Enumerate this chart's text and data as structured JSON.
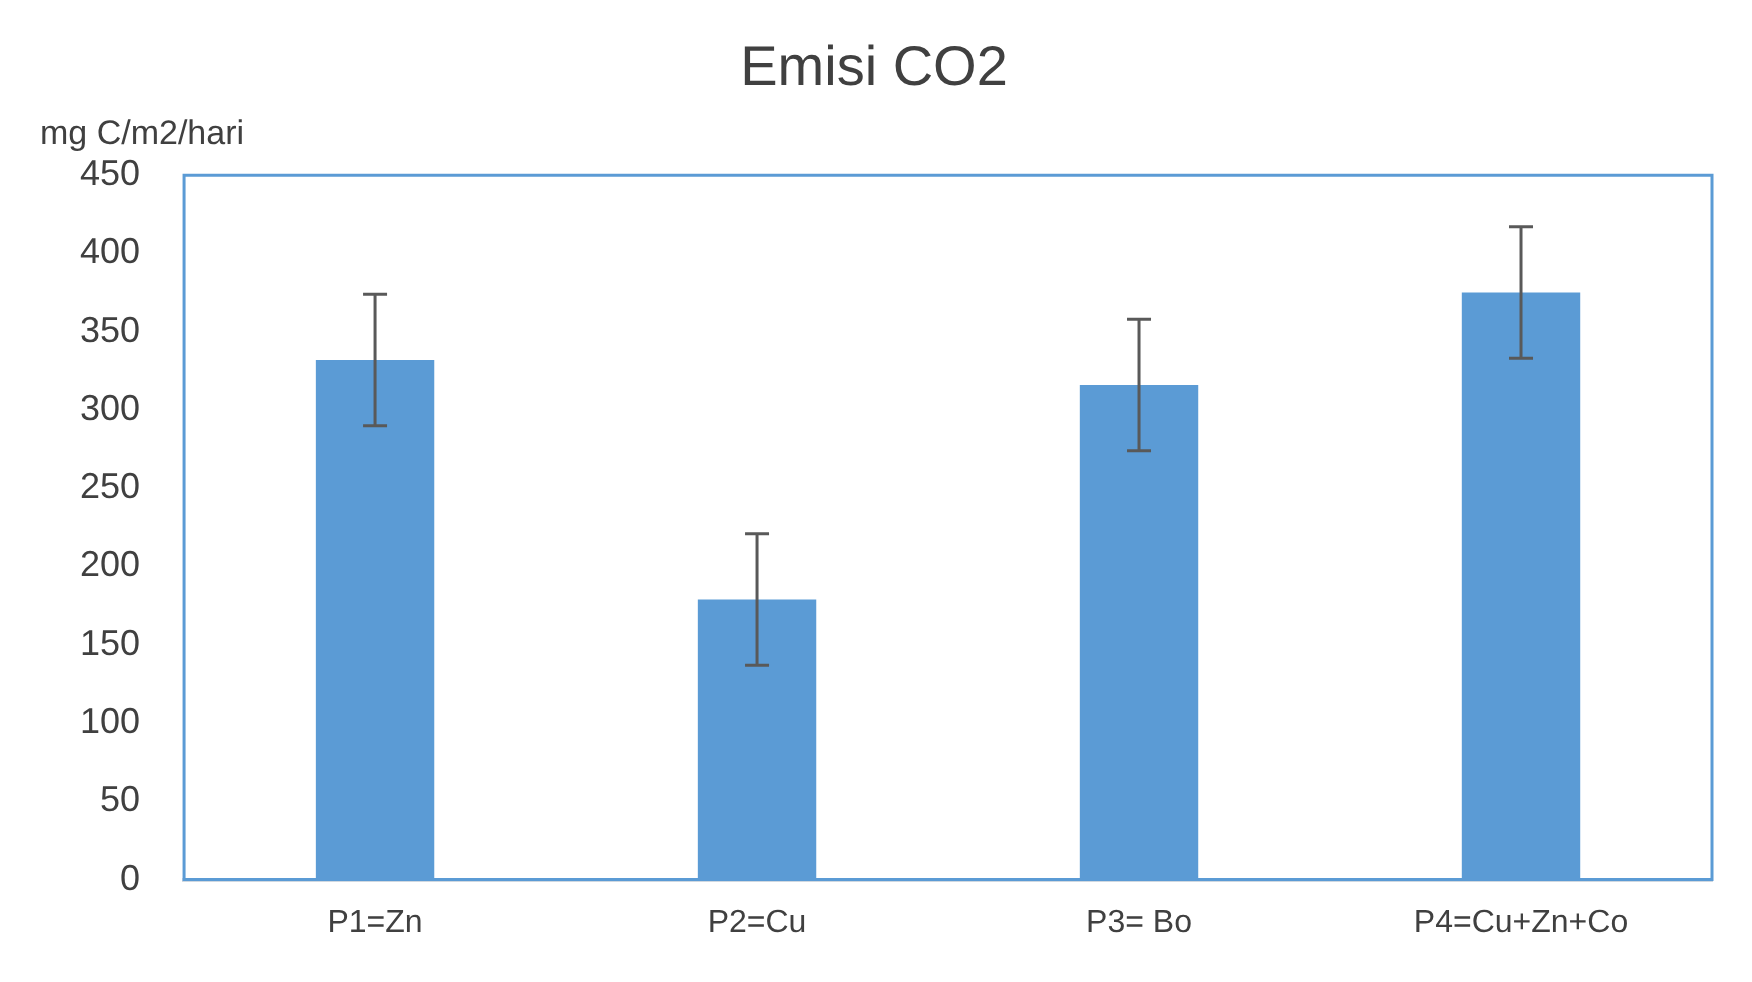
{
  "chart_data": {
    "type": "bar",
    "title": "Emisi CO2",
    "ylabel": "mg C/m2/hari",
    "categories": [
      "P1=Zn",
      "P2=Cu",
      "P3= Bo",
      "P4=Cu+Zn+Co"
    ],
    "values": [
      332,
      179,
      316,
      375
    ],
    "color": "#5b9bd5",
    "errors": [
      42,
      42,
      42,
      42
    ],
    "ylim": [
      0,
      450
    ],
    "yticks": [
      0,
      50,
      100,
      150,
      200,
      250,
      300,
      350,
      400,
      450
    ],
    "grid": false,
    "legend": false
  }
}
